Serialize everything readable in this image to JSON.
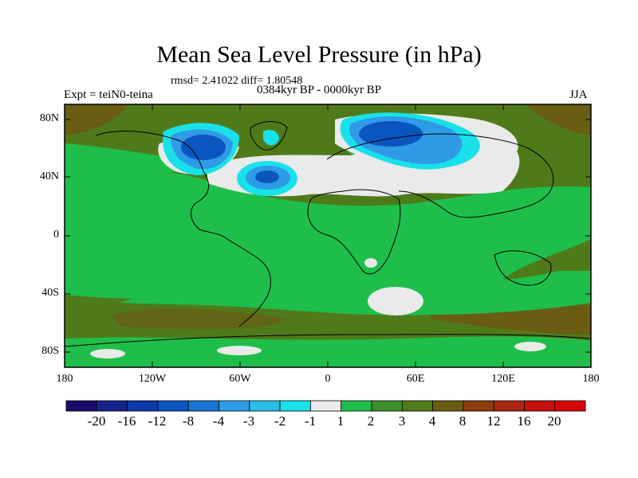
{
  "title": "Mean Sea Level Pressure (in hPa)",
  "stats": "rmsd= 2.41022 diff= 1.80548",
  "experiment": "Expt = teiN0-teina",
  "period": "0384kyr BP - 0000kyr BP",
  "season": "JJA",
  "y_axis_labels": [
    "80N",
    "40N",
    "0",
    "40S",
    "80S"
  ],
  "x_axis_labels": [
    "180",
    "120W",
    "60W",
    "0",
    "60E",
    "120E",
    "180"
  ],
  "colorbar": {
    "labels": [
      "-20",
      "-16",
      "-12",
      "-8",
      "-4",
      "-3",
      "-2",
      "-1",
      "1",
      "2",
      "3",
      "4",
      "8",
      "12",
      "16",
      "20"
    ],
    "colors": [
      "#1c0a6b",
      "#16238f",
      "#0d3aa6",
      "#0a55bf",
      "#1674d4",
      "#2f9ae6",
      "#29bde8",
      "#19e1ea",
      "#eaeaea",
      "#1fbe4b",
      "#3e8f2a",
      "#4f7a1a",
      "#6a5c12",
      "#8a3e0e",
      "#a8260d",
      "#c3100a",
      "#d40606"
    ]
  },
  "colors": {
    "ocean_background": "#4f7a1a",
    "land_background": "#1fbe4b",
    "near_zero": "#eaeaea",
    "high": "#6a5c12"
  }
}
